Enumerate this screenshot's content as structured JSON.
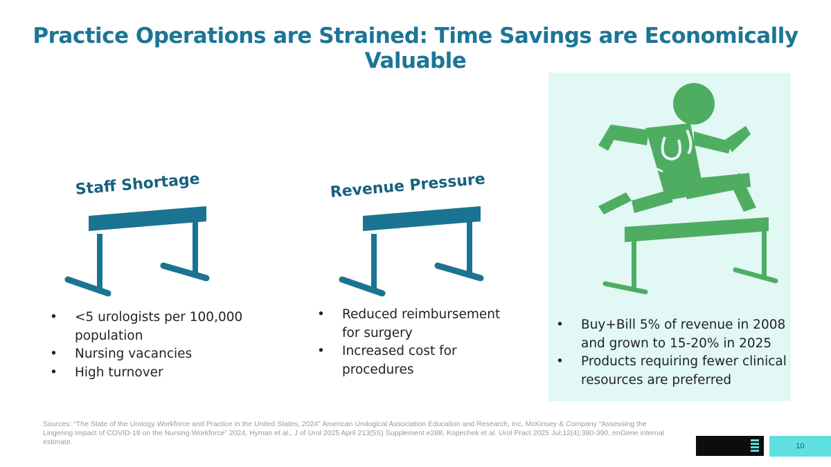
{
  "slide": {
    "title": "Practice Operations are Strained: Time Savings are Economically Valuable",
    "page_number": "10"
  },
  "columns": [
    {
      "heading": "Staff Shortage",
      "bullets": [
        "<5 urologists per 100,000 population",
        "Nursing vacancies",
        "High turnover"
      ]
    },
    {
      "heading": "Revenue Pressure",
      "bullets": [
        "Reduced reimbursement for surgery",
        "Increased cost for procedures"
      ]
    },
    {
      "heading": "",
      "bullets": [
        "Buy+Bill 5% of revenue in 2008 and grown to 15-20% in 2025",
        "Products requiring fewer clinical resources are preferred"
      ]
    }
  ],
  "sources": "Sources: “The State of the Urology Workforce and Practice in the United States, 2024” American Urological Association Education and Research, Inc, McKinsey & Company “Assessing the Lingering Impact of COVID-19 on the Nursing Workforce” 2024, Hyman et al., J of Urol 2025 April 213(5S) Supplement e288, Kopechek et al. Urol Pract 2025 Jul;12(4):380-390, enGene internal estimate.",
  "colors": {
    "title": "#1c7596",
    "hurdle_blue": "#1a7491",
    "hurdle_green": "#4fad62",
    "panel_bg": "#e1f8f5",
    "page_box": "#5ee0e0"
  },
  "icons": [
    "hurdle-icon",
    "hurdle-icon",
    "doctor-jumping-hurdle-icon",
    "logo-mark-icon"
  ]
}
